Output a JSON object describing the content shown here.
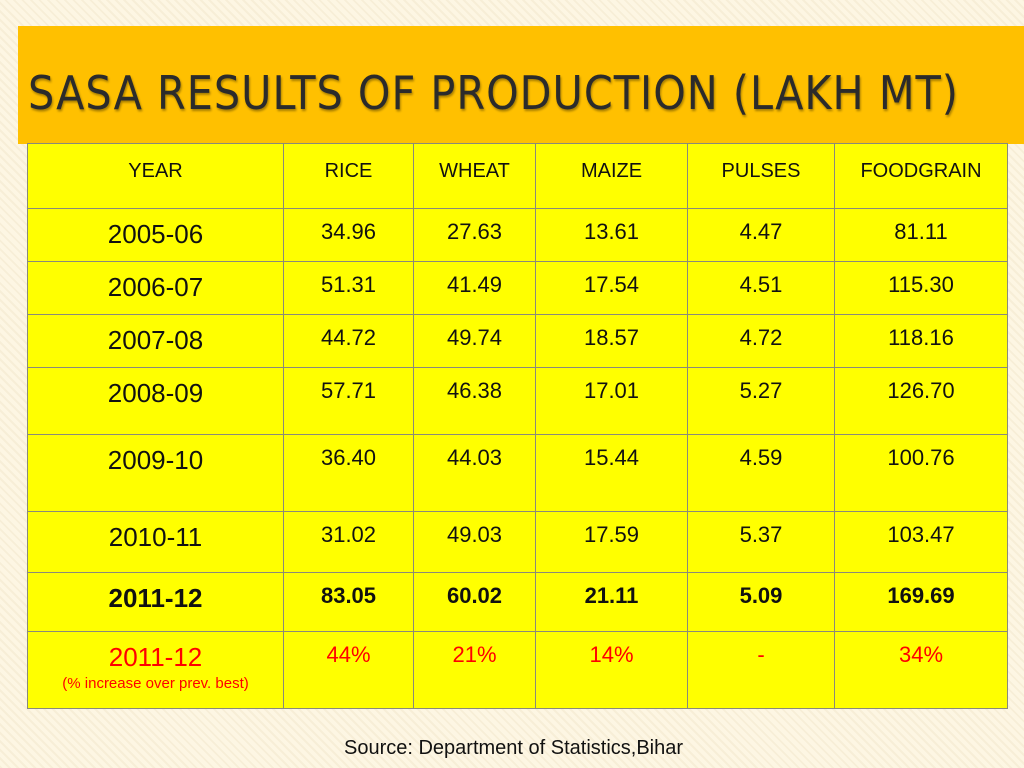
{
  "title": "SASA RESULTS OF PRODUCTION (LAKH MT)",
  "table": {
    "headers": [
      "YEAR",
      "RICE",
      "WHEAT",
      "MAIZE",
      "PULSES",
      "FOODGRAIN"
    ],
    "rows": [
      {
        "year": "2005-06",
        "values": [
          "34.96",
          "27.63",
          "13.61",
          "4.47",
          "81.11"
        ]
      },
      {
        "year": "2006-07",
        "values": [
          "51.31",
          "41.49",
          "17.54",
          "4.51",
          "115.30"
        ]
      },
      {
        "year": "2007-08",
        "values": [
          "44.72",
          "49.74",
          "18.57",
          "4.72",
          "118.16"
        ]
      },
      {
        "year": "2008-09",
        "values": [
          "57.71",
          "46.38",
          "17.01",
          "5.27",
          "126.70"
        ]
      },
      {
        "year": "2009-10",
        "values": [
          "36.40",
          "44.03",
          "15.44",
          "4.59",
          "100.76"
        ]
      },
      {
        "year": "2010-11",
        "values": [
          "31.02",
          "49.03",
          "17.59",
          "5.37",
          "103.47"
        ]
      },
      {
        "year": "2011-12",
        "values": [
          "83.05",
          "60.02",
          "21.11",
          "5.09",
          "169.69"
        ]
      },
      {
        "year": "2011-12",
        "note": "(% increase over prev. best)",
        "values": [
          "44%",
          "21%",
          "14%",
          "-",
          "34%"
        ]
      }
    ]
  },
  "source": "Source: Department of Statistics,Bihar",
  "colors": {
    "title_bar": "#ffc000",
    "table_bg": "#ffff00",
    "highlight_text": "#ff0000"
  }
}
